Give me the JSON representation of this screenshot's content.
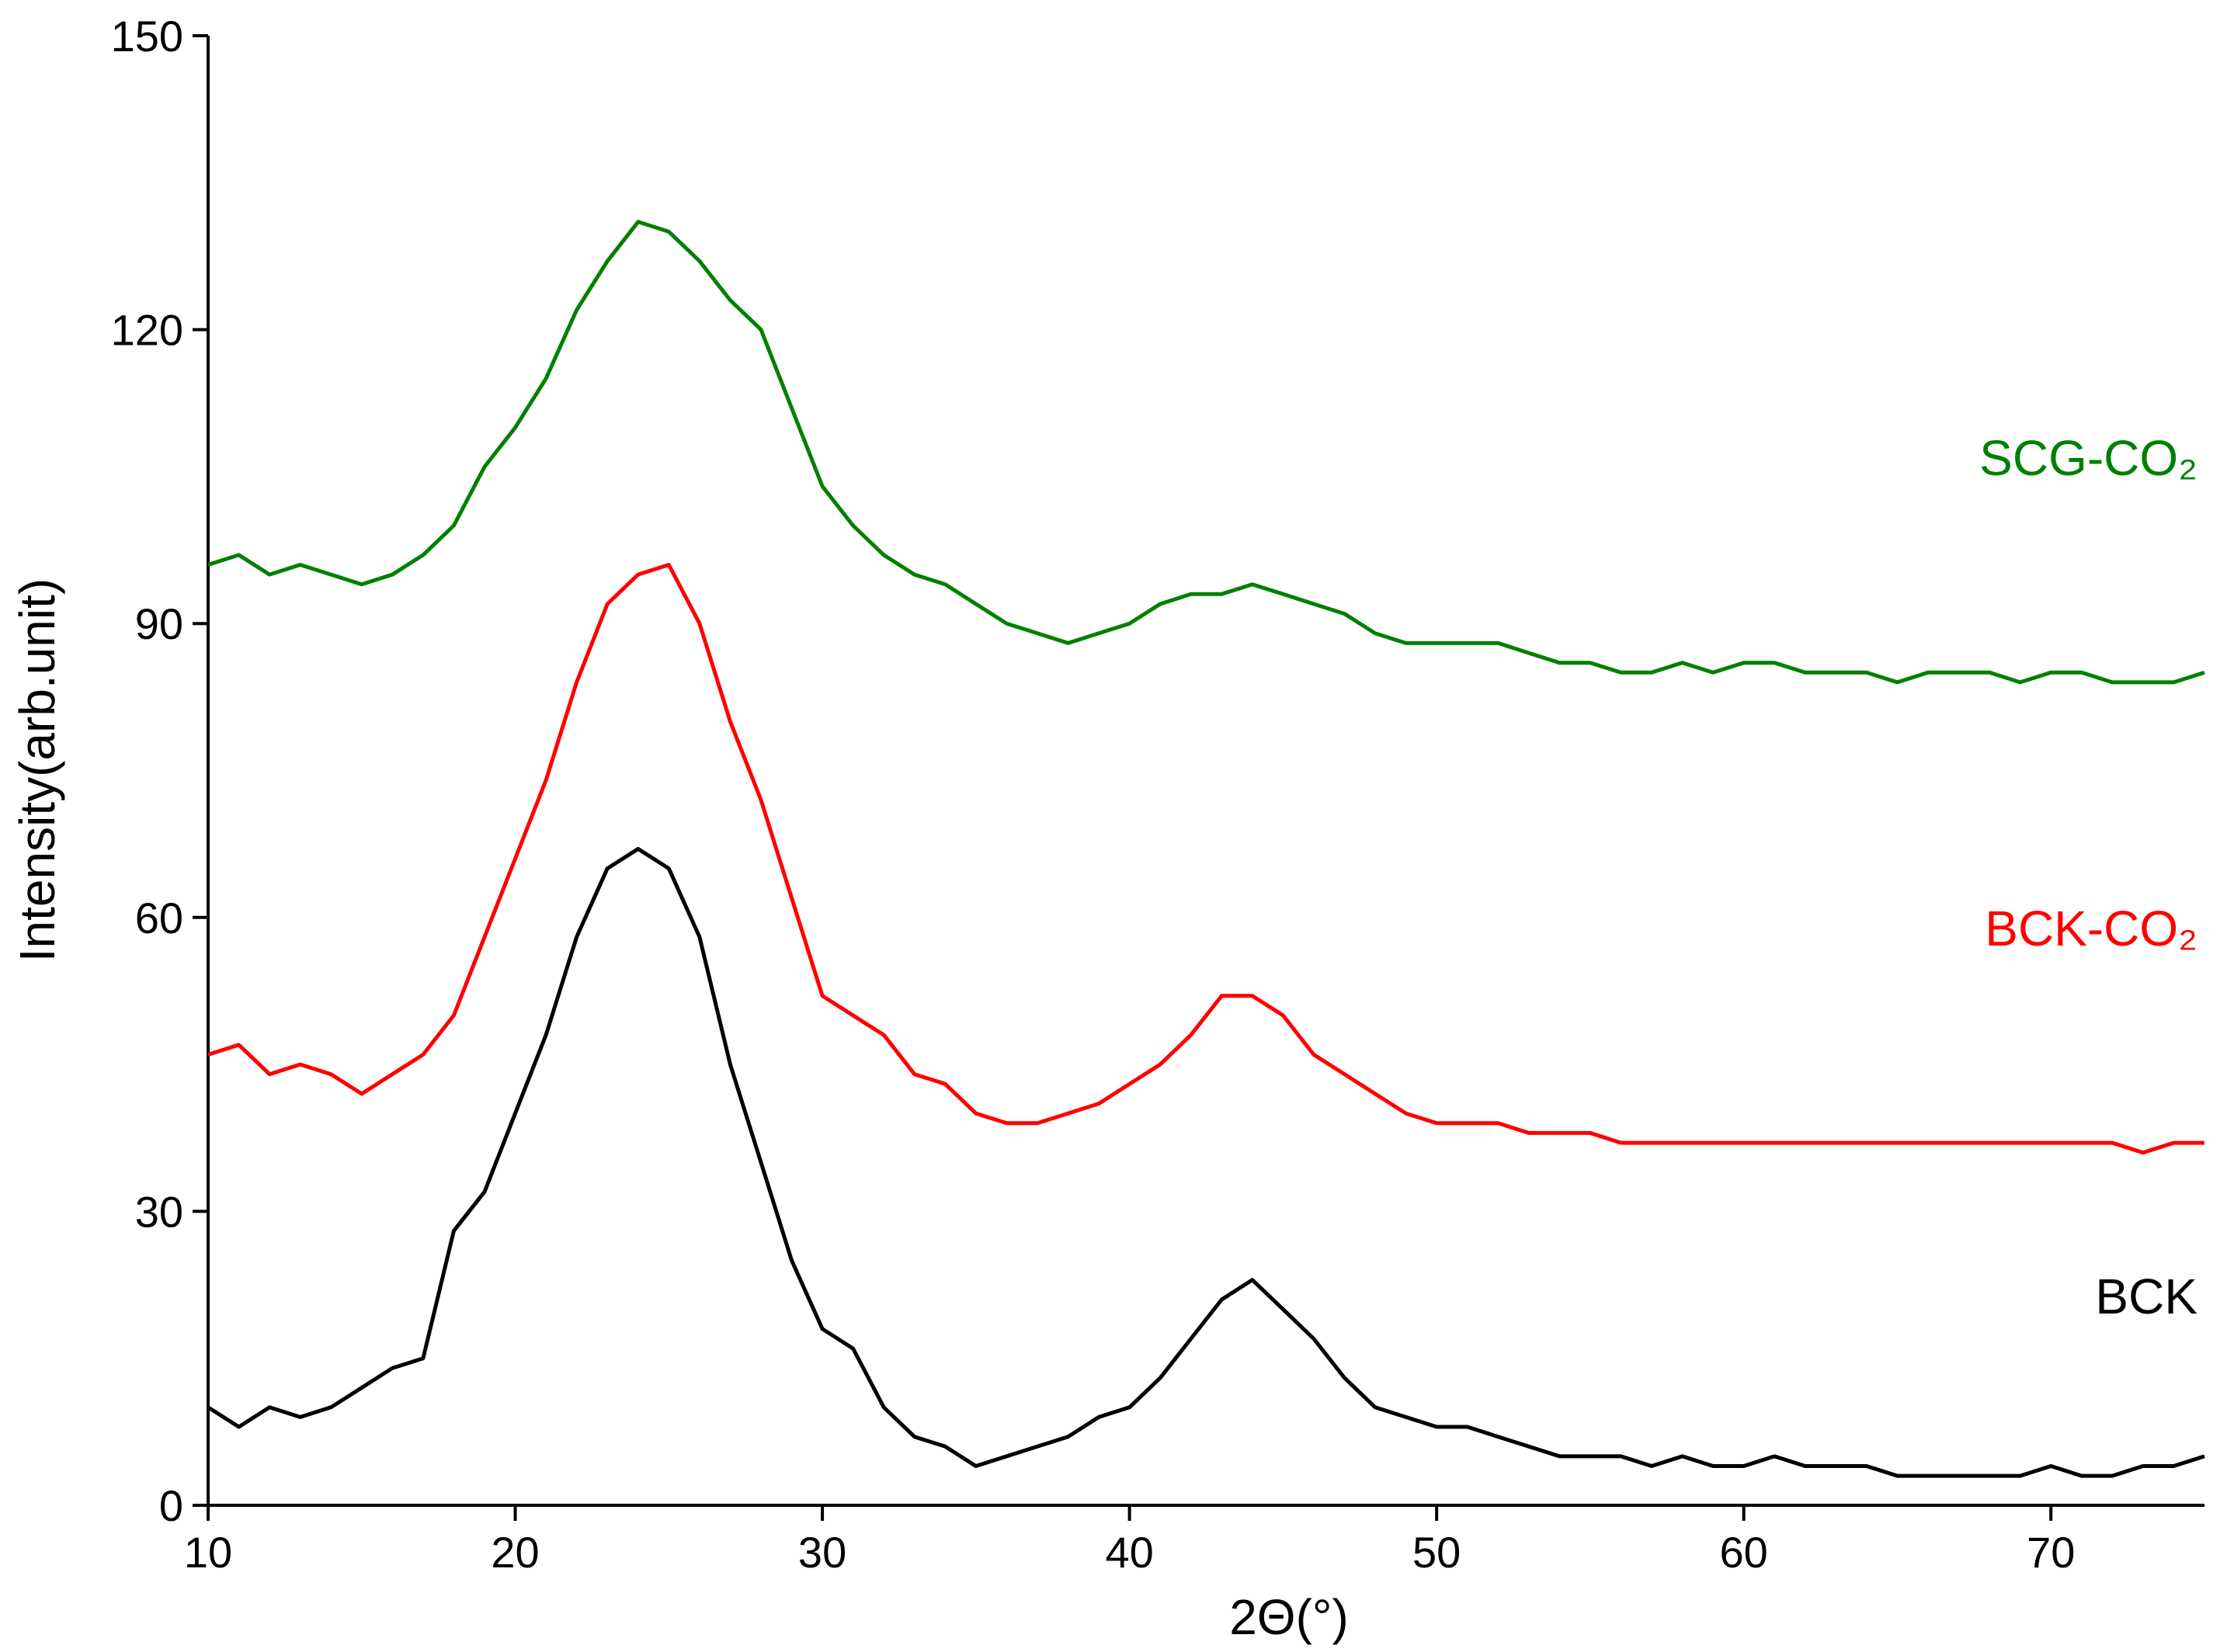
{
  "chart_data": {
    "type": "line",
    "xlabel": "2Θ(°)",
    "ylabel": "Intensity(arb.unit)",
    "x": [
      10,
      11,
      12,
      13,
      14,
      15,
      16,
      17,
      18,
      19,
      20,
      21,
      22,
      23,
      24,
      25,
      26,
      27,
      28,
      29,
      30,
      31,
      32,
      33,
      34,
      35,
      36,
      37,
      38,
      39,
      40,
      41,
      42,
      43,
      44,
      45,
      46,
      47,
      48,
      49,
      50,
      51,
      52,
      53,
      54,
      55,
      56,
      57,
      58,
      59,
      60,
      61,
      62,
      63,
      64,
      65,
      66,
      67,
      68,
      69,
      70,
      71,
      72,
      73,
      74,
      75
    ],
    "series": [
      {
        "name": "SCG-CO₂",
        "color": "#008000",
        "values": [
          96,
          97,
          95,
          96,
          95,
          94,
          95,
          97,
          100,
          106,
          110,
          115,
          122,
          127,
          131,
          130,
          127,
          123,
          120,
          112,
          104,
          100,
          97,
          95,
          94,
          92,
          90,
          89,
          88,
          89,
          90,
          92,
          93,
          93,
          94,
          93,
          92,
          91,
          89,
          88,
          88,
          88,
          88,
          87,
          86,
          86,
          85,
          85,
          86,
          85,
          86,
          86,
          85,
          85,
          85,
          84,
          85,
          85,
          85,
          84,
          85,
          85,
          84,
          84,
          84,
          85
        ]
      },
      {
        "name": "BCK-CO₂",
        "color": "#ff0000",
        "values": [
          46,
          47,
          44,
          45,
          44,
          42,
          44,
          46,
          50,
          58,
          66,
          74,
          84,
          92,
          95,
          96,
          90,
          80,
          72,
          62,
          52,
          50,
          48,
          44,
          43,
          40,
          39,
          39,
          40,
          41,
          43,
          45,
          48,
          52,
          52,
          50,
          46,
          44,
          42,
          40,
          39,
          39,
          39,
          38,
          38,
          38,
          37,
          37,
          37,
          37,
          37,
          37,
          37,
          37,
          37,
          37,
          37,
          37,
          37,
          37,
          37,
          37,
          37,
          36,
          37,
          37
        ]
      },
      {
        "name": "BCK",
        "color": "#000000",
        "values": [
          10,
          8,
          10,
          9,
          10,
          12,
          14,
          15,
          28,
          32,
          40,
          48,
          58,
          65,
          67,
          65,
          58,
          45,
          35,
          25,
          18,
          16,
          10,
          7,
          6,
          4,
          5,
          6,
          7,
          9,
          10,
          13,
          17,
          21,
          23,
          20,
          17,
          13,
          10,
          9,
          8,
          8,
          7,
          6,
          5,
          5,
          5,
          4,
          5,
          4,
          4,
          5,
          4,
          4,
          4,
          3,
          3,
          3,
          3,
          3,
          4,
          3,
          3,
          4,
          4,
          5
        ]
      }
    ],
    "xlim": [
      10,
      75
    ],
    "xticks": [
      10,
      20,
      30,
      40,
      50,
      60,
      70
    ],
    "ylim": [
      0,
      150
    ],
    "yticks": [
      0,
      30,
      60,
      90,
      120,
      150
    ],
    "grid": false
  }
}
